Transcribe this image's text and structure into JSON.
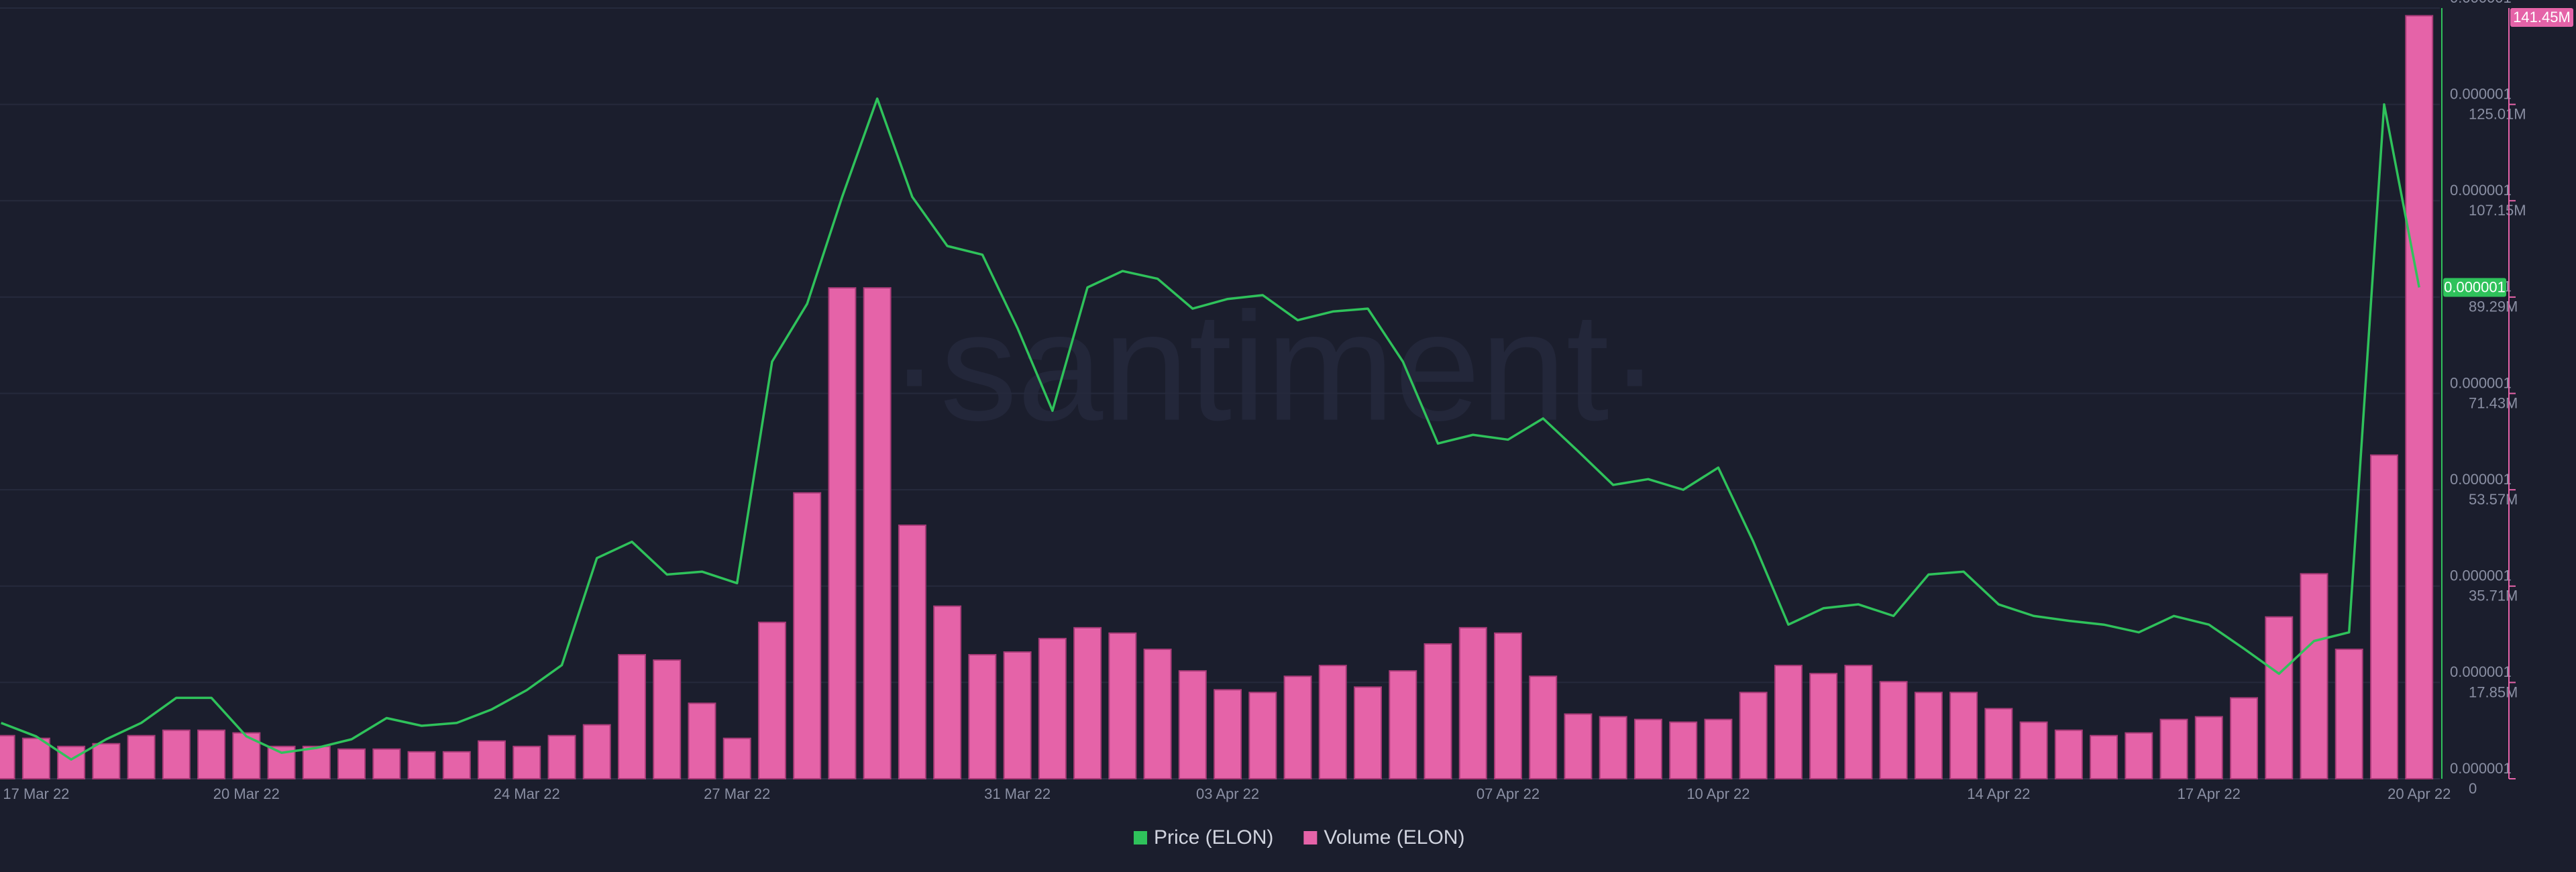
{
  "chart_data": {
    "type": "bar-line",
    "watermark": "·santiment·",
    "categories": [
      null,
      "17 Mar 22",
      null,
      null,
      null,
      null,
      null,
      "20 Mar 22",
      null,
      null,
      null,
      null,
      null,
      null,
      null,
      "24 Mar 22",
      null,
      null,
      null,
      null,
      null,
      "27 Mar 22",
      null,
      null,
      null,
      null,
      null,
      null,
      null,
      "31 Mar 22",
      null,
      null,
      null,
      null,
      null,
      "03 Apr 22",
      null,
      null,
      null,
      null,
      null,
      null,
      null,
      "07 Apr 22",
      null,
      null,
      null,
      null,
      null,
      "10 Apr 22",
      null,
      null,
      null,
      null,
      null,
      null,
      null,
      "14 Apr 22",
      null,
      null,
      null,
      null,
      null,
      "17 Apr 22",
      null,
      null,
      null,
      null,
      null,
      "20 Apr 22"
    ],
    "series": [
      {
        "name": "Price (ELON)",
        "type": "line",
        "axis": "y",
        "color": "#2fc25b",
        "last_label": "0.000001",
        "values": [
          6.58e-07,
          6.44e-07,
          6.2e-07,
          6.41e-07,
          6.58e-07,
          6.84e-07,
          6.84e-07,
          6.44e-07,
          6.27e-07,
          6.32e-07,
          6.41e-07,
          6.63e-07,
          6.55e-07,
          6.58e-07,
          6.72e-07,
          6.92e-07,
          7.18e-07,
          8.29e-07,
          8.46e-07,
          8.12e-07,
          8.15e-07,
          8.03e-07,
          1.033e-06,
          1.093e-06,
          1.204e-06,
          1.306e-06,
          1.204e-06,
          1.153e-06,
          1.144e-06,
          1.068e-06,
          9.82e-07,
          1.11e-06,
          1.127e-06,
          1.119e-06,
          1.088e-06,
          1.098e-06,
          1.102e-06,
          1.076e-06,
          1.085e-06,
          1.088e-06,
          1.033e-06,
          9.48e-07,
          9.57e-07,
          9.52e-07,
          9.74e-07,
          9.4e-07,
          9.05e-07,
          9.11e-07,
          9e-07,
          9.23e-07,
          8.46e-07,
          7.6e-07,
          7.77e-07,
          7.81e-07,
          7.69e-07,
          8.12e-07,
          8.15e-07,
          7.81e-07,
          7.69e-07,
          7.64e-07,
          7.6e-07,
          7.52e-07,
          7.69e-07,
          7.6e-07,
          7.35e-07,
          7.09e-07,
          7.43e-07,
          7.52e-07,
          1.3e-06,
          1.11e-06
        ]
      },
      {
        "name": "Volume (ELON)",
        "type": "bar",
        "axis": "y2",
        "color": "#e563a8",
        "last_label": "141.45M",
        "values": [
          8000000,
          7500000,
          6000000,
          6500000,
          8000000,
          9000000,
          9000000,
          8500000,
          6000000,
          6000000,
          5500000,
          5500000,
          5000000,
          5000000,
          7000000,
          6000000,
          8000000,
          10000000,
          23000000,
          22000000,
          14000000,
          7500000,
          29000000,
          53000000,
          91000000,
          91000000,
          47000000,
          32000000,
          23000000,
          23500000,
          26000000,
          28000000,
          27000000,
          24000000,
          20000000,
          16500000,
          16000000,
          19000000,
          21000000,
          17000000,
          20000000,
          25000000,
          28000000,
          27000000,
          19000000,
          12000000,
          11500000,
          11000000,
          10500000,
          11000000,
          16000000,
          21000000,
          19500000,
          21000000,
          18000000,
          16000000,
          16000000,
          13000000,
          10500000,
          9000000,
          8000000,
          8500000,
          11000000,
          11500000,
          15000000,
          30000000,
          38000000,
          24000000,
          60000000,
          141450000
        ]
      }
    ],
    "ylim": [
      6e-07,
      1.4e-06
    ],
    "yticks": [
      {
        "value": 6e-07,
        "label": "0.000001"
      },
      {
        "value": 7e-07,
        "label": "0.000001"
      },
      {
        "value": 8e-07,
        "label": "0.000001"
      },
      {
        "value": 9e-07,
        "label": "0.000001"
      },
      {
        "value": 1e-06,
        "label": "0.000001"
      },
      {
        "value": 1.1e-06,
        "label": "0.000001"
      },
      {
        "value": 1.2e-06,
        "label": "0.000001"
      },
      {
        "value": 1.3e-06,
        "label": "0.000001"
      },
      {
        "value": 1.4e-06,
        "label": "0.000001"
      }
    ],
    "y2lim": [
      0,
      142870000
    ],
    "y2ticks": [
      0,
      {
        "value": 17850000,
        "label": "17.85M"
      },
      {
        "value": 35710000,
        "label": "35.71M"
      },
      {
        "value": 53570000,
        "label": "53.57M"
      },
      {
        "value": 71430000,
        "label": "71.43M"
      },
      {
        "value": 89290000,
        "label": "89.29M"
      },
      {
        "value": 107150000,
        "label": "107.15M"
      },
      {
        "value": 125010000,
        "label": "125.01M"
      }
    ],
    "grid": true,
    "legend": "bottom"
  }
}
